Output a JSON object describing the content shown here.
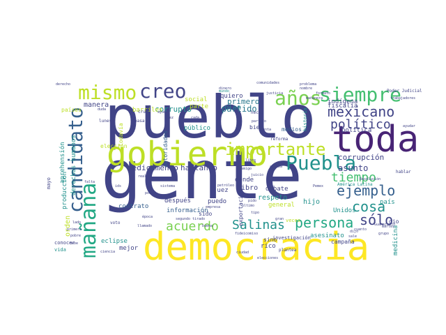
{
  "palette": {
    "dark_purple": "#482475",
    "indigo": "#414487",
    "steel_blue": "#355f8d",
    "teal": "#2a788e",
    "green_teal": "#21918c",
    "sea_green": "#22a884",
    "green": "#44bf70",
    "lime": "#7ad151",
    "yellow_green": "#bddf26",
    "yellow": "#fde725"
  },
  "words": [
    {
      "text": "gente",
      "color": "#414487",
      "rotate": false
    },
    {
      "text": "pueblo",
      "color": "#414487",
      "rotate": false
    },
    {
      "text": "democracia",
      "color": "#fde725",
      "rotate": false
    },
    {
      "text": "toda",
      "color": "#482475",
      "rotate": false
    },
    {
      "text": "gobierno",
      "color": "#bddf26",
      "rotate": false
    },
    {
      "text": "mañana",
      "color": "#22a884",
      "rotate": true
    },
    {
      "text": "mismo",
      "color": "#bddf26",
      "rotate": false
    },
    {
      "text": "creo",
      "color": "#414487",
      "rotate": false
    },
    {
      "text": "años",
      "color": "#7ad151",
      "rotate": false
    },
    {
      "text": "siempre",
      "color": "#44bf70",
      "rotate": false
    },
    {
      "text": "candidato",
      "color": "#355f8d",
      "rotate": true
    },
    {
      "text": "Puebla",
      "color": "#21918c",
      "rotate": false
    },
    {
      "text": "importante",
      "color": "#bddf26",
      "rotate": false
    },
    {
      "text": "mexicano",
      "color": "#414487",
      "rotate": false
    },
    {
      "text": "político",
      "color": "#414487",
      "rotate": false
    },
    {
      "text": "tiempo",
      "color": "#44bf70",
      "rotate": false
    },
    {
      "text": "ejemplo",
      "color": "#355f8d",
      "rotate": false
    },
    {
      "text": "cosa",
      "color": "#21918c",
      "rotate": false
    },
    {
      "text": "persona",
      "color": "#22a884",
      "rotate": false
    },
    {
      "text": "sólo",
      "color": "#414487",
      "rotate": false
    },
    {
      "text": "Salinas",
      "color": "#21918c",
      "rotate": false
    },
    {
      "text": "acuerdo",
      "color": "#7ad151",
      "rotate": false
    },
    {
      "text": "corrupción",
      "color": "#414487",
      "rotate": false
    },
    {
      "text": "asunto",
      "color": "#414487",
      "rotate": false
    },
    {
      "text": "fiscalía",
      "color": "#414487",
      "rotate": false
    },
    {
      "text": "indígena",
      "color": "#414487",
      "rotate": false
    },
    {
      "text": "política",
      "color": "#414487",
      "rotate": false
    },
    {
      "text": "partido",
      "color": "#2a788e",
      "rotate": false
    },
    {
      "text": "primero",
      "color": "#2a788e",
      "rotate": false
    },
    {
      "text": "plan",
      "color": "#2a788e",
      "rotate": false
    },
    {
      "text": "manera",
      "color": "#414487",
      "rotate": false
    },
    {
      "text": "corrupto",
      "color": "#21918c",
      "rotate": false
    },
    {
      "text": "parte",
      "color": "#bddf26",
      "rotate": false
    },
    {
      "text": "social",
      "color": "#bddf26",
      "rotate": false
    },
    {
      "text": "quiero",
      "color": "#414487",
      "rotate": false
    },
    {
      "text": "barriles",
      "color": "#bddf26",
      "rotate": false
    },
    {
      "text": "países",
      "color": "#bddf26",
      "rotate": false
    },
    {
      "text": "mundo",
      "color": "#21918c",
      "rotate": false
    },
    {
      "text": "medicamento",
      "color": "#414487",
      "rotate": false
    },
    {
      "text": "hablando",
      "color": "#414487",
      "rotate": false
    },
    {
      "text": "información",
      "color": "#355f8d",
      "rotate": false
    },
    {
      "text": "público",
      "color": "#21918c",
      "rotate": false
    },
    {
      "text": "elección",
      "color": "#bddf26",
      "rotate": false
    },
    {
      "text": "dónde",
      "color": "#414487",
      "rotate": false
    },
    {
      "text": "libro",
      "color": "#414487",
      "rotate": false
    },
    {
      "text": "juez",
      "color": "#414487",
      "rotate": false
    },
    {
      "text": "puedo",
      "color": "#414487",
      "rotate": false
    },
    {
      "text": "después",
      "color": "#414487",
      "rotate": false
    },
    {
      "text": "debate",
      "color": "#414487",
      "rotate": false
    },
    {
      "text": "respeto",
      "color": "#21918c",
      "rotate": false
    },
    {
      "text": "hijo",
      "color": "#21918c",
      "rotate": false
    },
    {
      "text": "general",
      "color": "#bddf26",
      "rotate": false
    },
    {
      "text": "veces",
      "color": "#bddf26",
      "rotate": false
    },
    {
      "text": "país",
      "color": "#21918c",
      "rotate": false
    },
    {
      "text": "dio",
      "color": "#414487",
      "rotate": false
    },
    {
      "text": "Unidos",
      "color": "#21918c",
      "rotate": false
    },
    {
      "text": "asesinato",
      "color": "#21918c",
      "rotate": false
    },
    {
      "text": "sino",
      "color": "#414487",
      "rotate": false
    },
    {
      "text": "rico",
      "color": "#414487",
      "rotate": false
    },
    {
      "text": "campaña",
      "color": "#414487",
      "rotate": false
    },
    {
      "text": "eclipse",
      "color": "#21918c",
      "rotate": false
    },
    {
      "text": "contrato",
      "color": "#355f8d",
      "rotate": false
    },
    {
      "text": "mejor",
      "color": "#414487",
      "rotate": false
    },
    {
      "text": "sido",
      "color": "#414487",
      "rotate": false
    },
    {
      "text": "medicina",
      "color": "#21918c",
      "rotate": true
    },
    {
      "text": "aprehensión",
      "color": "#21918c",
      "rotate": true
    },
    {
      "text": "derechos humanos",
      "color": "#21918c",
      "rotate": true
    },
    {
      "text": "producción",
      "color": "#21918c",
      "rotate": true
    },
    {
      "text": "orden",
      "color": "#bddf26",
      "rotate": true
    },
    {
      "text": "mayo",
      "color": "#414487",
      "rotate": true
    },
    {
      "text": "conocer",
      "color": "#414487",
      "rotate": false
    },
    {
      "text": "vida",
      "color": "#21918c",
      "rotate": false
    },
    {
      "text": "autoridades",
      "color": "#355f8d",
      "rotate": true
    },
    {
      "text": "exportación",
      "color": "#414487",
      "rotate": true
    },
    {
      "text": "todavía",
      "color": "#bddf26",
      "rotate": true
    },
    {
      "text": "historia",
      "color": "#21918c",
      "rotate": true
    },
    {
      "text": "medios",
      "color": "#355f8d",
      "rotate": false
    },
    {
      "text": "bien",
      "color": "#414487",
      "rotate": false
    },
    {
      "text": "investigación",
      "color": "#414487",
      "rotate": false
    },
    {
      "text": "reforma",
      "color": "#414487",
      "rotate": false
    },
    {
      "text": "América Latina",
      "color": "#21918c",
      "rotate": false
    },
    {
      "text": "hablar",
      "color": "#414487",
      "rotate": false
    },
    {
      "text": "Poder Judicial",
      "color": "#414487",
      "rotate": false
    },
    {
      "text": "comunidades",
      "color": "#414487",
      "rotate": false
    },
    {
      "text": "problema",
      "color": "#414487",
      "rotate": false
    },
    {
      "text": "trabajadores",
      "color": "#414487",
      "rotate": false
    },
    {
      "text": "derecho",
      "color": "#414487",
      "rotate": false
    },
    {
      "text": "dinero",
      "color": "#414487",
      "rotate": false
    },
    {
      "text": "hecho",
      "color": "#414487",
      "rotate": false
    },
    {
      "text": "duda",
      "color": "#414487",
      "rotate": false
    },
    {
      "text": "crudo",
      "color": "#414487",
      "rotate": false
    },
    {
      "text": "ayuda",
      "color": "#414487",
      "rotate": false
    },
    {
      "text": "lunes",
      "color": "#414487",
      "rotate": false
    },
    {
      "text": "pasa",
      "color": "#414487",
      "rotate": false
    },
    {
      "text": "vez",
      "color": "#414487",
      "rotate": false
    },
    {
      "text": "cada",
      "color": "#414487",
      "rotate": false
    },
    {
      "text": "nombre",
      "color": "#414487",
      "rotate": false
    },
    {
      "text": "cuenta",
      "color": "#414487",
      "rotate": false
    },
    {
      "text": "arriba",
      "color": "#414487",
      "rotate": false
    },
    {
      "text": "Pemex",
      "color": "#414487",
      "rotate": false
    },
    {
      "text": "Resolución",
      "color": "#414487",
      "rotate": false
    },
    {
      "text": "mañanera",
      "color": "#414487",
      "rotate": false
    },
    {
      "text": "formato",
      "color": "#414487",
      "rotate": false
    },
    {
      "text": "sale",
      "color": "#414487",
      "rotate": false
    },
    {
      "text": "ayudar",
      "color": "#414487",
      "rotate": false
    },
    {
      "text": "dijo",
      "color": "#414487",
      "rotate": false
    },
    {
      "text": "cuanto",
      "color": "#414487",
      "rotate": false
    },
    {
      "text": "martes",
      "color": "#414487",
      "rotate": false
    },
    {
      "text": "grupo",
      "color": "#414487",
      "rotate": false
    },
    {
      "text": "Guanajuato",
      "color": "#414487",
      "rotate": false
    },
    {
      "text": "petróleo",
      "color": "#414487",
      "rotate": false
    },
    {
      "text": "último",
      "color": "#414487",
      "rotate": false
    },
    {
      "text": "elecciones",
      "color": "#414487",
      "rotate": false
    },
    {
      "text": "ciudad",
      "color": "#414487",
      "rotate": false
    },
    {
      "text": "plantea",
      "color": "#414487",
      "rotate": false
    },
    {
      "text": "voto",
      "color": "#414487",
      "rotate": false
    },
    {
      "text": "llamado",
      "color": "#414487",
      "rotate": false
    },
    {
      "text": "época",
      "color": "#414487",
      "rotate": false
    },
    {
      "text": "ciencia",
      "color": "#414487",
      "rotate": false
    },
    {
      "text": "pobre",
      "color": "#414487",
      "rotate": false
    },
    {
      "text": "debe",
      "color": "#414487",
      "rotate": false
    },
    {
      "text": "falta",
      "color": "#414487",
      "rotate": false
    },
    {
      "text": "sistema",
      "color": "#414487",
      "rotate": false
    },
    {
      "text": "real",
      "color": "#414487",
      "rotate": false
    },
    {
      "text": "empresa",
      "color": "#414487",
      "rotate": false
    },
    {
      "text": "segundo",
      "color": "#414487",
      "rotate": false
    },
    {
      "text": "tirado",
      "color": "#414487",
      "rotate": false
    },
    {
      "text": "buena",
      "color": "#414487",
      "rotate": false
    },
    {
      "text": "ids",
      "color": "#414487",
      "rotate": false
    },
    {
      "text": "lado",
      "color": "#414487",
      "rotate": false
    },
    {
      "text": "primera",
      "color": "#414487",
      "rotate": false
    },
    {
      "text": "justicia",
      "color": "#414487",
      "rotate": false
    },
    {
      "text": "fideicomiso",
      "color": "#414487",
      "rotate": false
    },
    {
      "text": "gran",
      "color": "#414487",
      "rotate": false
    },
    {
      "text": "tipo",
      "color": "#414487",
      "rotate": false
    },
    {
      "text": "libre",
      "color": "#414487",
      "rotate": false
    },
    {
      "text": "amigo",
      "color": "#414487",
      "rotate": false
    },
    {
      "text": "poder",
      "color": "#414487",
      "rotate": false
    },
    {
      "text": "minuto",
      "color": "#414487",
      "rotate": false
    },
    {
      "text": "juicio",
      "color": "#414487",
      "rotate": false
    },
    {
      "text": "pido",
      "color": "#414487",
      "rotate": false
    },
    {
      "text": "partido",
      "color": "#414487",
      "rotate": false
    }
  ]
}
